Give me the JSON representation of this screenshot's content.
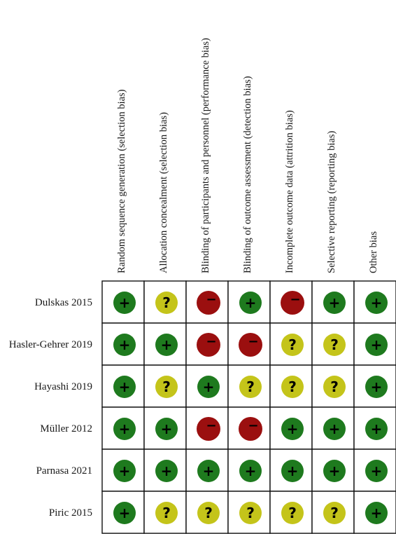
{
  "chart_data": {
    "type": "table",
    "domains": [
      "Random sequence generation (selection bias)",
      "Allocation concealment (selection bias)",
      "Blinding of participants and personnel (performance bias)",
      "Blinding of outcome assessment (detection bias)",
      "Incomplete outcome data (attrition bias)",
      "Selective reporting (reporting bias)",
      "Other bias"
    ],
    "studies": [
      "Dulskas 2015",
      "Hasler-Gehrer 2019",
      "Hayashi 2019",
      "Müller 2012",
      "Parnasa 2021",
      "Piric 2015"
    ],
    "judgements": [
      [
        "low",
        "unclear",
        "high",
        "low",
        "high",
        "low",
        "low"
      ],
      [
        "low",
        "low",
        "high",
        "high",
        "unclear",
        "unclear",
        "low"
      ],
      [
        "low",
        "unclear",
        "low",
        "unclear",
        "unclear",
        "unclear",
        "low"
      ],
      [
        "low",
        "low",
        "high",
        "high",
        "low",
        "low",
        "low"
      ],
      [
        "low",
        "low",
        "low",
        "low",
        "low",
        "low",
        "low"
      ],
      [
        "low",
        "unclear",
        "unclear",
        "unclear",
        "unclear",
        "unclear",
        "low"
      ]
    ],
    "symbols": {
      "low": "+",
      "unclear": "?",
      "high": "−"
    },
    "colors": {
      "low": "#1e7a1e",
      "unclear": "#c4c41a",
      "high": "#9b0f0f"
    }
  }
}
